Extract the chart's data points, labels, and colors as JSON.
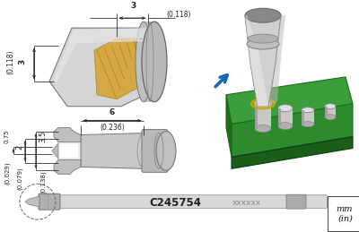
{
  "fig_width": 4.0,
  "fig_height": 2.59,
  "dpi": 100,
  "bg_color": "#ffffff",
  "part_number": "C245754",
  "serial_text": "xxxxxx",
  "unit_label": "mm\n(in)"
}
